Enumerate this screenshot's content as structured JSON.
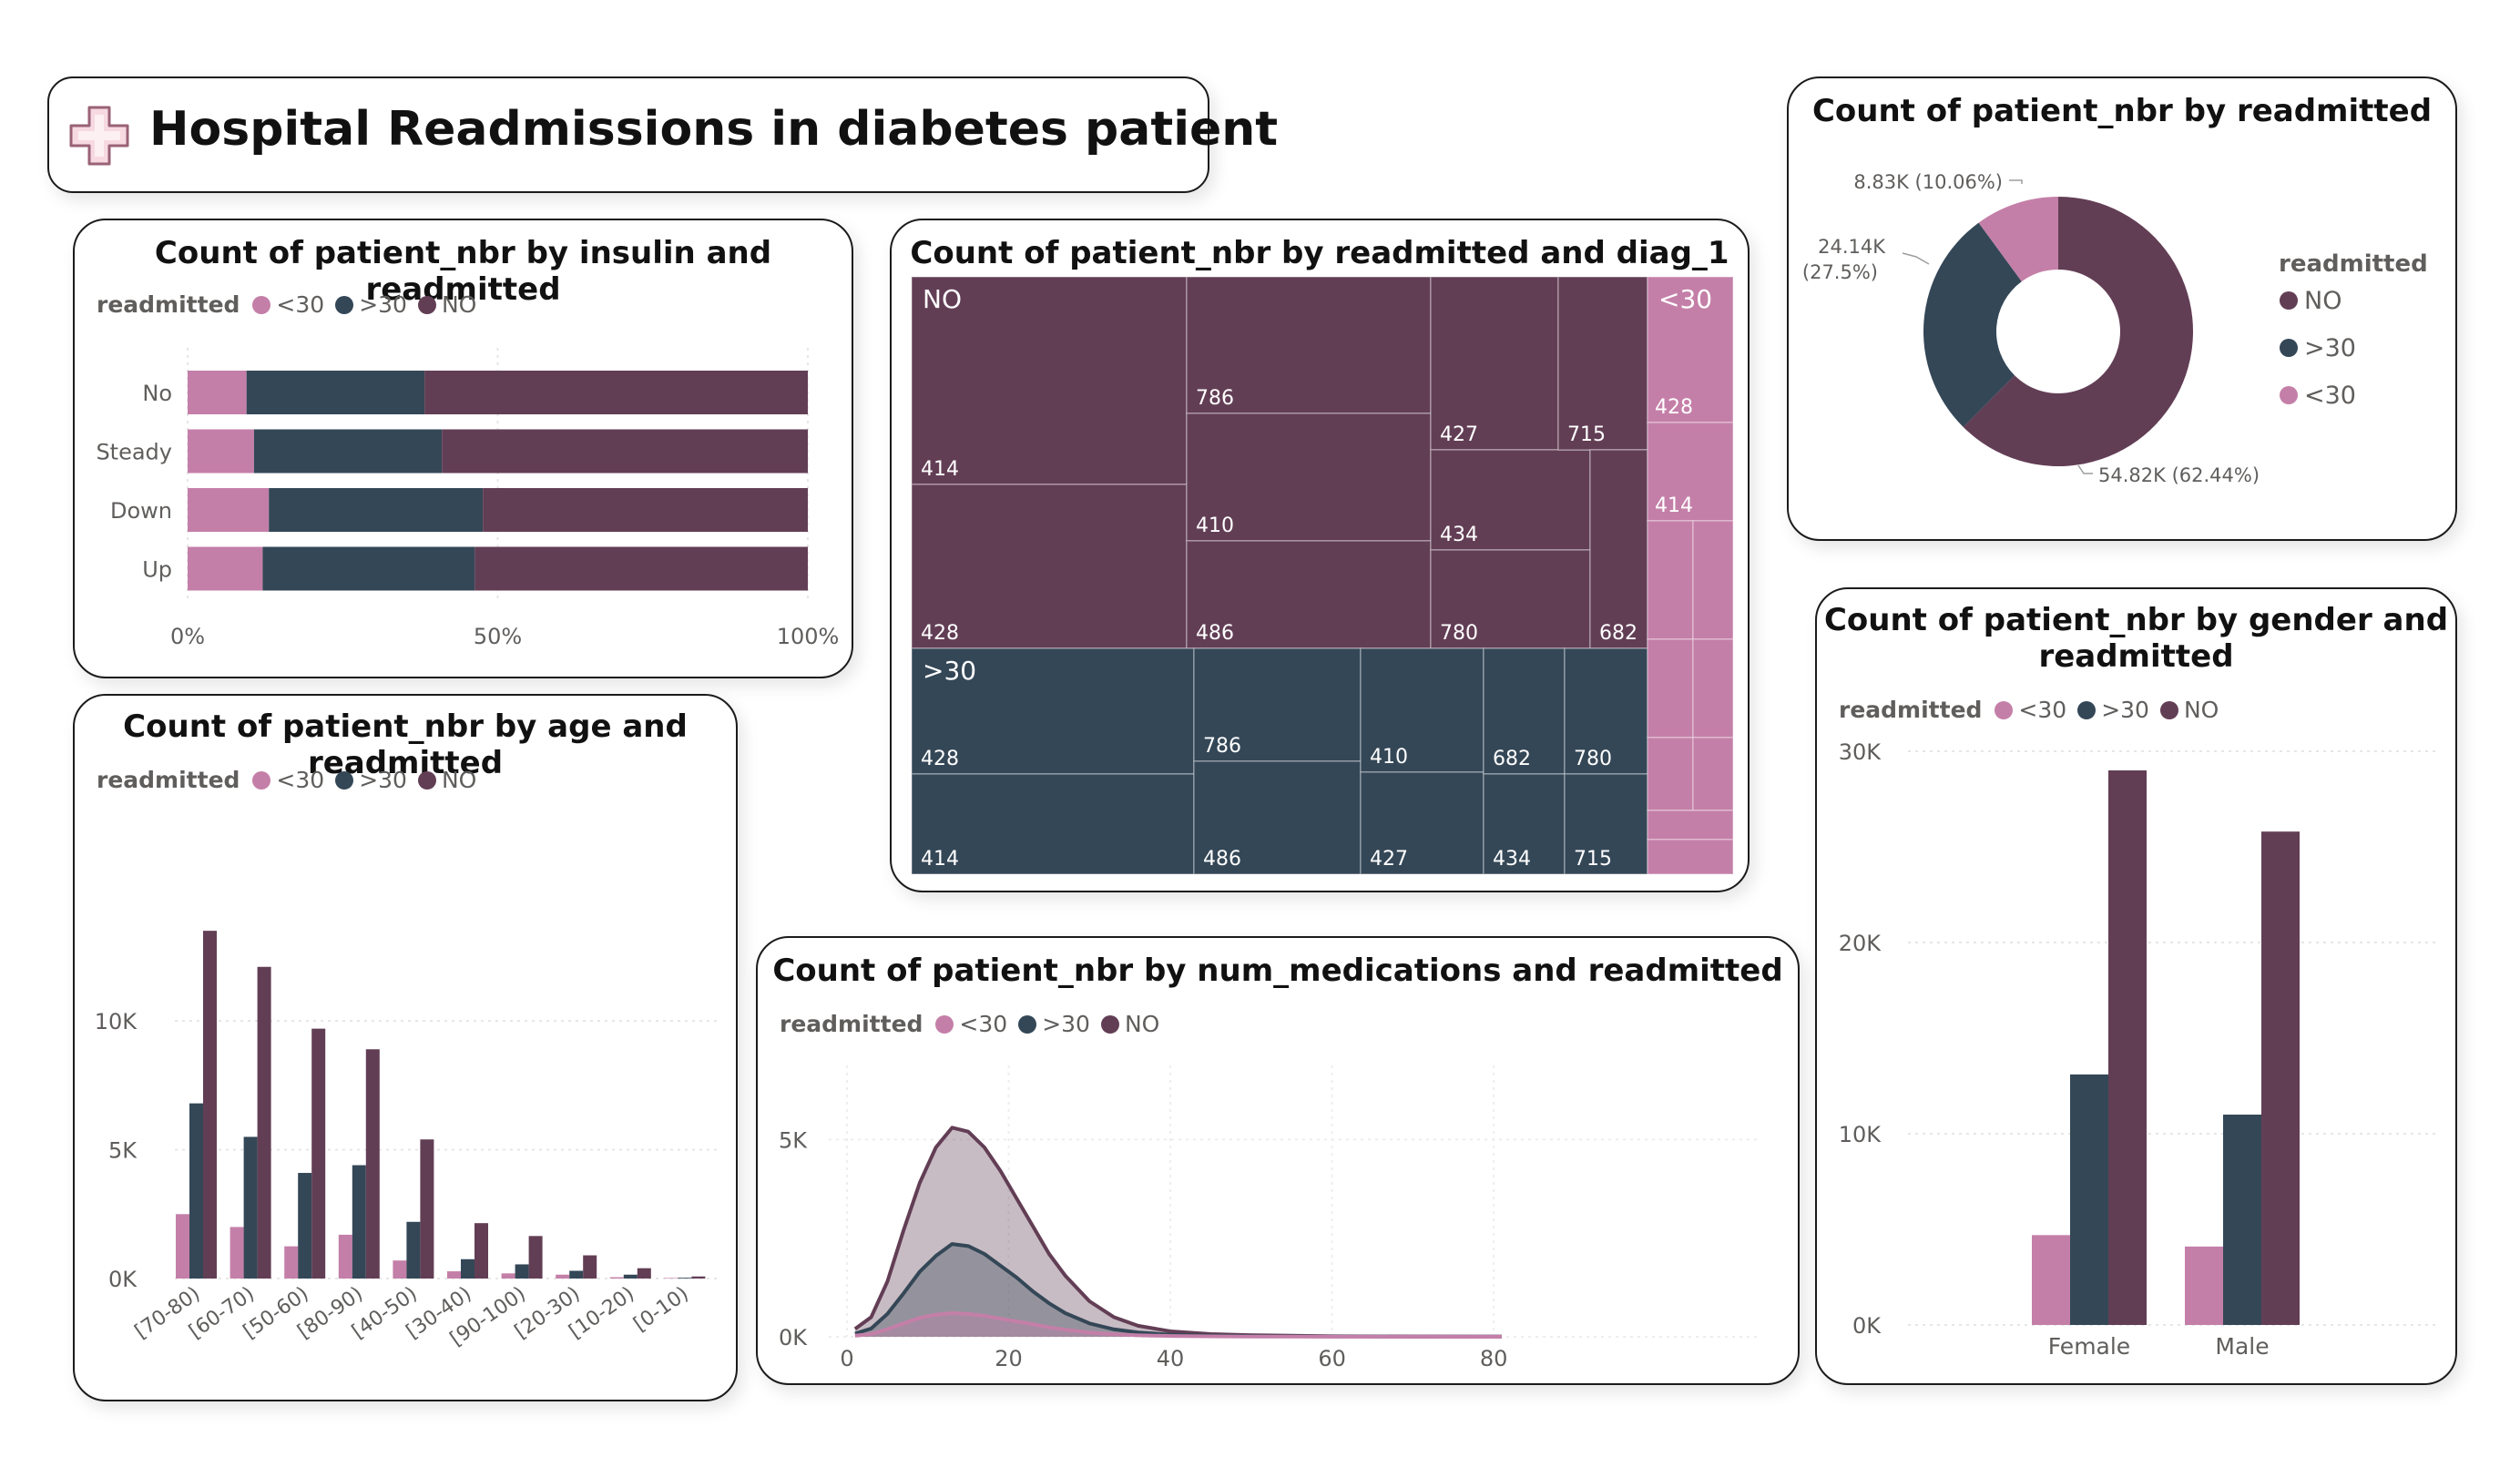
{
  "header": {
    "title": "Hospital Readmissions in diabetes patient",
    "icon": "medical-cross-icon"
  },
  "colors": {
    "lt30": "#c47fa8",
    "gt30": "#344757",
    "no": "#623e55"
  },
  "legend_title": "readmitted",
  "legend_labels": {
    "lt30": "<30",
    "gt30": ">30",
    "no": "NO"
  },
  "insulin_chart": {
    "title": "Count of patient_nbr by insulin and readmitted",
    "chart_data": {
      "type": "bar",
      "orientation": "horizontal-100%-stacked",
      "categories": [
        "No",
        "Steady",
        "Down",
        "Up"
      ],
      "series": [
        {
          "name": "<30",
          "values": [
            9.5,
            10.7,
            13.1,
            12.1
          ]
        },
        {
          "name": ">30",
          "values": [
            28.7,
            30.3,
            34.5,
            34.2
          ]
        },
        {
          "name": "NO",
          "values": [
            61.8,
            59.0,
            52.4,
            53.7
          ]
        }
      ],
      "xticks": [
        "0%",
        "50%",
        "100%"
      ],
      "xlim": [
        0,
        100
      ]
    }
  },
  "diag_chart": {
    "title": "Count of patient_nbr by readmitted and diag_1",
    "chart_data": {
      "type": "treemap",
      "groups": [
        {
          "name": "NO",
          "cells": [
            "414",
            "428",
            "786",
            "410",
            "486",
            "427",
            "434",
            "780",
            "715",
            "682"
          ]
        },
        {
          "name": ">30",
          "cells": [
            "428",
            "414",
            "786",
            "486",
            "410",
            "427",
            "682",
            "434",
            "780",
            "715"
          ]
        },
        {
          "name": "<30",
          "cells": [
            "428",
            "414"
          ]
        }
      ]
    }
  },
  "donut_chart": {
    "title": "Count of patient_nbr by readmitted",
    "chart_data": {
      "type": "pie",
      "style": "donut",
      "categories": [
        "NO",
        ">30",
        "<30"
      ],
      "values": [
        54820,
        24140,
        8830
      ],
      "labels": [
        "54.82K (62.44%)",
        "24.14K (27.5%)",
        "8.83K (10.06%)"
      ]
    },
    "label_lines": {
      "gt30_line1": "24.14K",
      "gt30_line2": "(27.5%)"
    }
  },
  "age_chart": {
    "title": "Count of patient_nbr by age and readmitted",
    "chart_data": {
      "type": "bar",
      "categories": [
        "[70-80)",
        "[60-70)",
        "[50-60)",
        "[80-90)",
        "[40-50)",
        "[30-40)",
        "[90-100)",
        "[20-30)",
        "[10-20)",
        "[0-10)"
      ],
      "series": [
        {
          "name": "<30",
          "values": [
            2500,
            2000,
            1250,
            1700,
            700,
            280,
            200,
            150,
            50,
            20
          ]
        },
        {
          "name": ">30",
          "values": [
            6800,
            5500,
            4100,
            4400,
            2200,
            750,
            550,
            300,
            150,
            30
          ]
        },
        {
          "name": "NO",
          "values": [
            13500,
            12100,
            9700,
            8900,
            5400,
            2150,
            1650,
            900,
            400,
            80
          ]
        }
      ],
      "yticks": [
        "0K",
        "5K",
        "10K"
      ],
      "ylim": [
        0,
        14000
      ]
    }
  },
  "meds_chart": {
    "title": "Count of patient_nbr by num_medications and readmitted",
    "chart_data": {
      "type": "area",
      "x": [
        1,
        3,
        5,
        7,
        9,
        11,
        13,
        15,
        17,
        19,
        21,
        23,
        25,
        27,
        30,
        33,
        36,
        40,
        45,
        50,
        60,
        70,
        81
      ],
      "series": [
        {
          "name": "NO",
          "values": [
            200,
            500,
            1400,
            2700,
            3900,
            4800,
            5300,
            5200,
            4800,
            4200,
            3500,
            2800,
            2100,
            1550,
            900,
            500,
            280,
            140,
            70,
            40,
            15,
            8,
            5
          ]
        },
        {
          "name": ">30",
          "values": [
            80,
            210,
            580,
            1100,
            1650,
            2050,
            2350,
            2300,
            2100,
            1800,
            1500,
            1150,
            850,
            600,
            340,
            190,
            110,
            55,
            30,
            18,
            8,
            4,
            2
          ]
        },
        {
          "name": "<30",
          "values": [
            30,
            70,
            190,
            340,
            480,
            560,
            600,
            580,
            530,
            460,
            390,
            320,
            240,
            180,
            110,
            65,
            38,
            20,
            12,
            7,
            3,
            2,
            1
          ]
        }
      ],
      "xticks": [
        "0",
        "20",
        "40",
        "60",
        "80"
      ],
      "yticks": [
        "0K",
        "5K"
      ],
      "ylim": [
        0,
        6000
      ],
      "xlim": [
        0,
        81
      ]
    }
  },
  "gender_chart": {
    "title_line1": "Count of patient_nbr by gender and",
    "title_line2": "readmitted",
    "chart_data": {
      "type": "bar",
      "categories": [
        "Female",
        "Male"
      ],
      "series": [
        {
          "name": "<30",
          "values": [
            4700,
            4100
          ]
        },
        {
          "name": ">30",
          "values": [
            13100,
            11000
          ]
        },
        {
          "name": "NO",
          "values": [
            29000,
            25800
          ]
        }
      ],
      "yticks": [
        "0K",
        "10K",
        "20K",
        "30K"
      ],
      "ylim": [
        0,
        30000
      ]
    }
  }
}
